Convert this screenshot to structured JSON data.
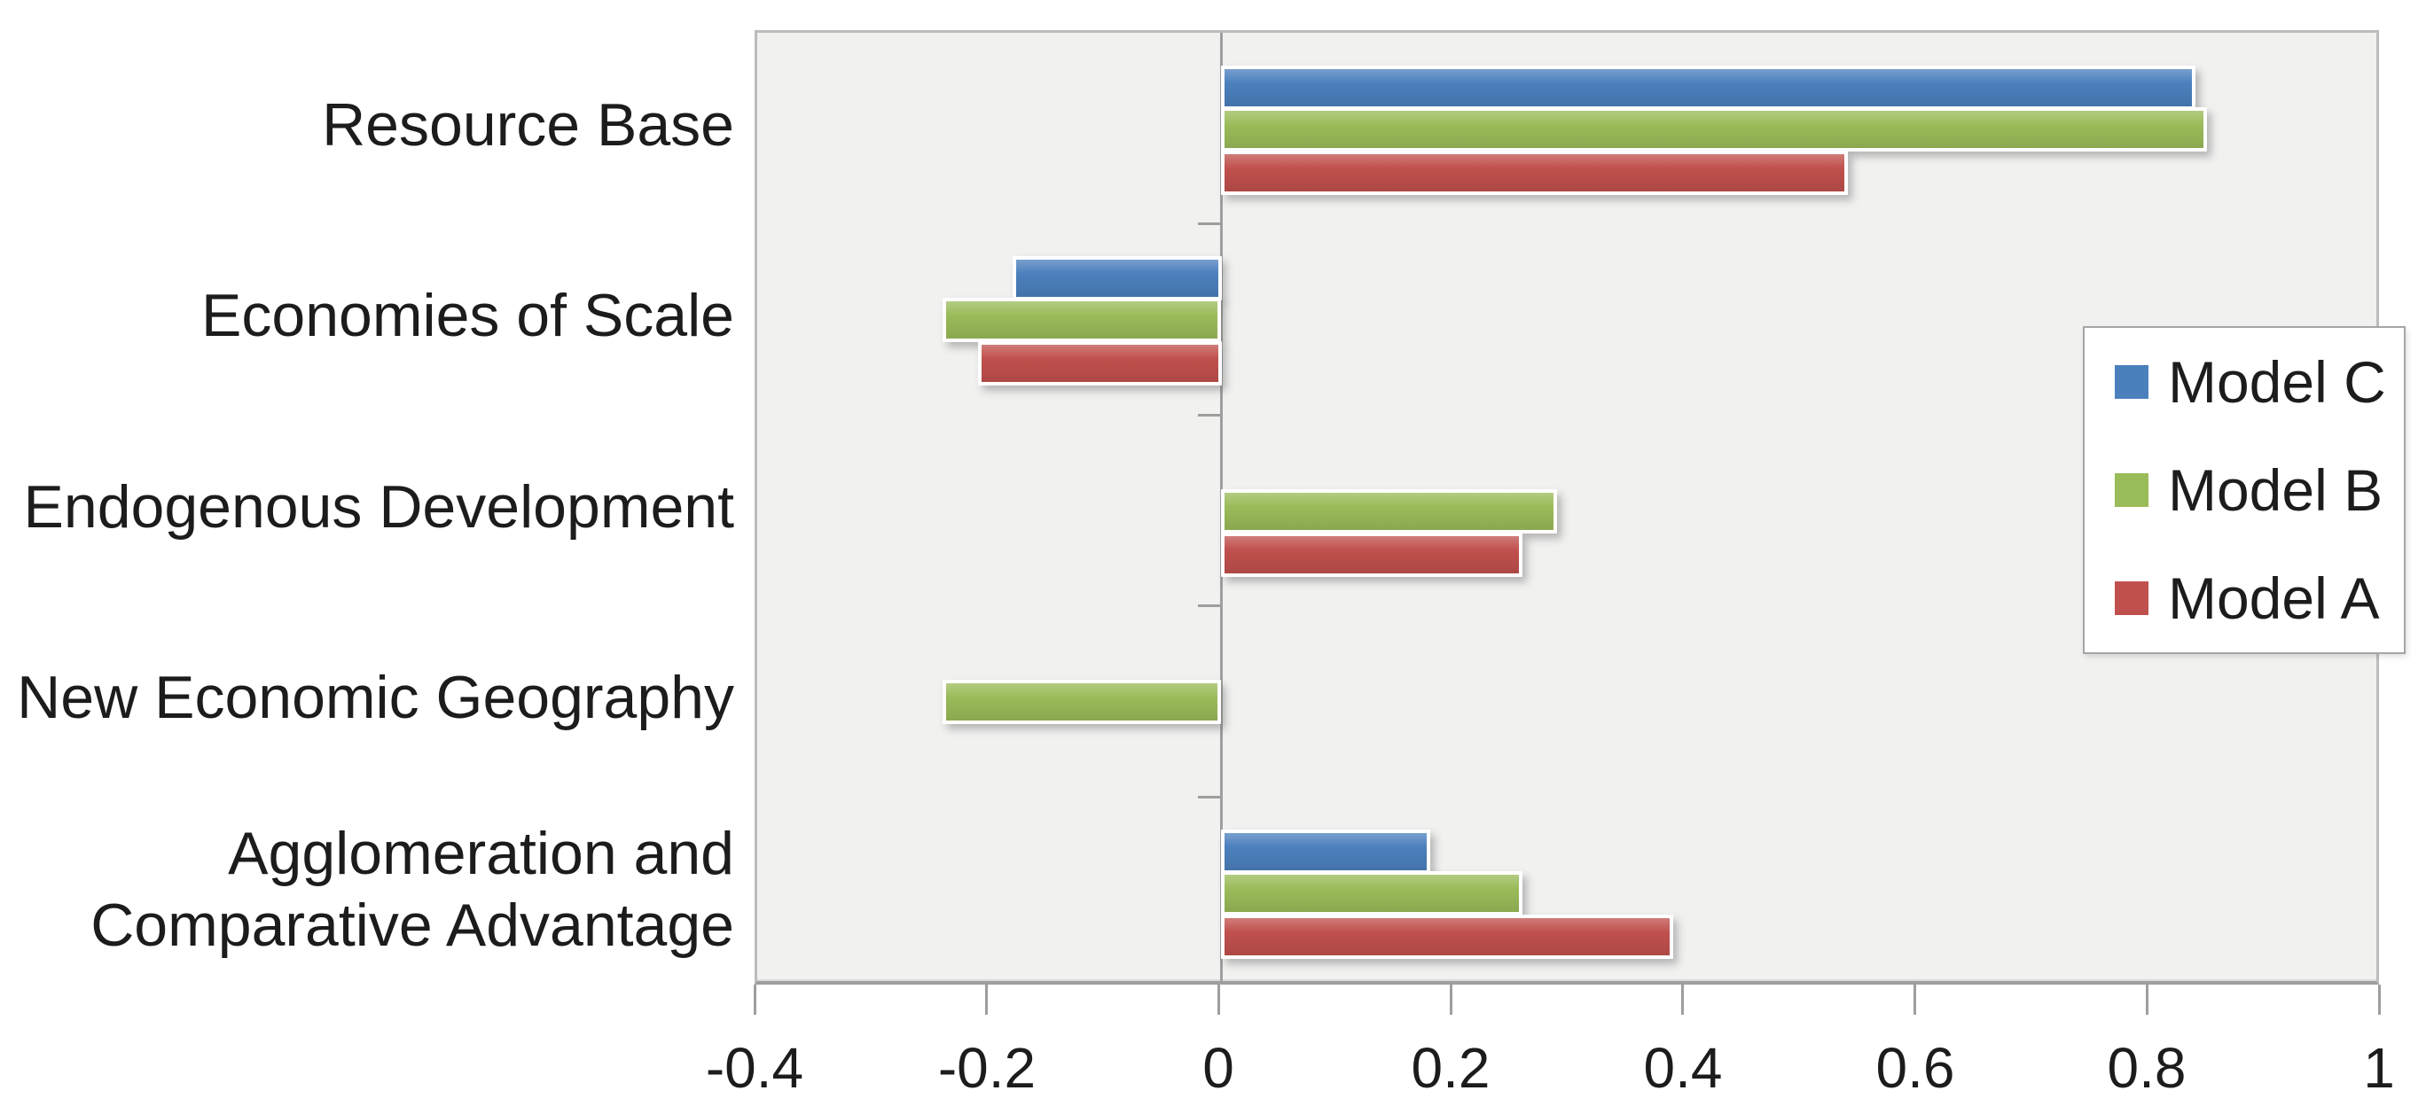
{
  "chart_data": {
    "type": "bar",
    "orientation": "horizontal",
    "title": "",
    "categories": [
      "Resource Base",
      "Economies of Scale",
      "Endogenous Development",
      "New Economic Geography",
      "Agglomeration and Comparative Advantage"
    ],
    "series": [
      {
        "name": "Model C",
        "color": "#4b80bd",
        "values": [
          0.84,
          -0.18,
          0,
          0,
          0.18
        ]
      },
      {
        "name": "Model B",
        "color": "#9abb59",
        "values": [
          0.85,
          -0.24,
          0.29,
          -0.24,
          0.26
        ]
      },
      {
        "name": "Model A",
        "color": "#c0504d",
        "values": [
          0.54,
          -0.21,
          0.26,
          0,
          0.39
        ]
      }
    ],
    "xlim": [
      -0.4,
      1
    ],
    "xticks": [
      -0.4,
      -0.2,
      0,
      0.2,
      0.4,
      0.6,
      0.8,
      1
    ],
    "xtick_labels": [
      "-0.4",
      "-0.2",
      "0",
      "0.2",
      "0.4",
      "0.6",
      "0.8",
      "1"
    ],
    "legend_position": "middle-right",
    "grid": false,
    "colors": {
      "plot_bg": "#f1f1f0",
      "axis": "#9e9e9e",
      "border": "#bcbcbc",
      "text": "#1c1c1c"
    }
  }
}
